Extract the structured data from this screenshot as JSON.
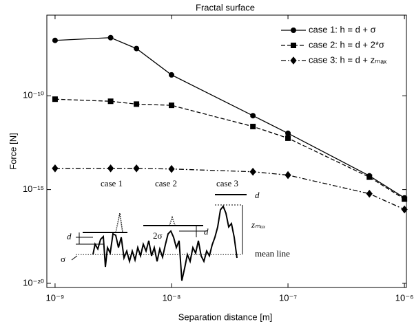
{
  "chart_data": {
    "type": "line",
    "title": "Fractal surface",
    "xlabel": "Separation distance [m]",
    "ylabel": "Force [N]",
    "x": [
      1e-09,
      3e-09,
      5e-09,
      1e-08,
      5e-08,
      1e-07,
      5e-07,
      1e-06
    ],
    "series": [
      {
        "name": "case 1: h = d + σ",
        "color": "#000000",
        "marker": "circle",
        "linestyle": "solid",
        "values": [
          9e-08,
          1.26e-07,
          3.3e-08,
          1.3e-09,
          8.7e-12,
          1e-12,
          5.4e-15,
          3.6e-16
        ]
      },
      {
        "name": "case 2: h = d + 2*σ",
        "color": "#000000",
        "marker": "square",
        "linestyle": "dashed",
        "values": [
          6.6e-11,
          5.1e-11,
          3.6e-11,
          3.1e-11,
          2.3e-12,
          5.5e-13,
          4.6e-15,
          3.1e-16
        ]
      },
      {
        "name": "case 3: h = d + zₘₐₓ",
        "color": "#000000",
        "marker": "diamond",
        "linestyle": "dashdot",
        "values": [
          1.35e-14,
          1.35e-14,
          1.35e-14,
          1.25e-14,
          8.9e-15,
          5.9e-15,
          6e-16,
          8.7e-17
        ]
      }
    ],
    "xscale": "log",
    "yscale": "log",
    "xlim": [
      8.5e-10,
      1.04e-06
    ],
    "ylim": [
      6e-21,
      2e-06
    ],
    "xticks": [
      {
        "value": 1e-09,
        "label": "10⁻⁹"
      },
      {
        "value": 1e-08,
        "label": "10⁻⁸"
      },
      {
        "value": 1e-07,
        "label": "10⁻⁷"
      },
      {
        "value": 1e-06,
        "label": "10⁻⁶"
      }
    ],
    "yticks": [
      {
        "value": 1e-20,
        "label": "10⁻²⁰"
      },
      {
        "value": 1e-15,
        "label": "10⁻¹⁵"
      },
      {
        "value": 1e-10,
        "label": "10⁻¹⁰"
      }
    ],
    "legend": "upper right",
    "grid": false,
    "annotations": [
      "case 1",
      "case 2",
      "case 3",
      "d",
      "zₘₐₓ",
      "mean line",
      "d",
      "2σ",
      "d",
      "σ"
    ]
  }
}
